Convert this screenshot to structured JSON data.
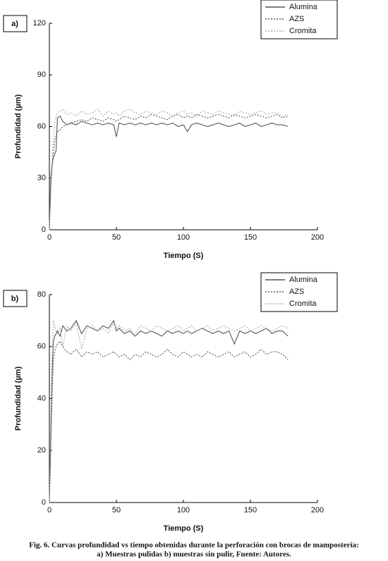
{
  "chart_data": [
    {
      "type": "line",
      "label": "a)",
      "xlabel": "Tiempo (S)",
      "ylabel": "Profundidad (µm)",
      "xlim": [
        0,
        200
      ],
      "xticks": [
        0,
        50,
        100,
        150,
        200
      ],
      "ylim": [
        0,
        120
      ],
      "yticks": [
        0,
        30,
        60,
        90,
        120
      ],
      "legend": "upper right",
      "x": [
        0,
        1,
        2,
        3,
        4,
        5,
        6,
        8,
        10,
        13,
        16,
        20,
        24,
        28,
        32,
        36,
        40,
        44,
        48,
        50,
        52,
        56,
        60,
        64,
        68,
        72,
        76,
        80,
        84,
        88,
        92,
        96,
        100,
        103,
        106,
        110,
        114,
        118,
        122,
        126,
        130,
        134,
        138,
        142,
        146,
        150,
        154,
        158,
        162,
        166,
        170,
        174,
        178
      ],
      "series": [
        {
          "name": "Alumina",
          "color": "#555555",
          "dash": "solid",
          "values": [
            0,
            30,
            38,
            42,
            44,
            46,
            65,
            66,
            63,
            61,
            62,
            61,
            63,
            62,
            61,
            62,
            61,
            62,
            61,
            54,
            62,
            61,
            62,
            61,
            62,
            61,
            62,
            61,
            62,
            61,
            62,
            60,
            61,
            57,
            61,
            62,
            61,
            60,
            61,
            62,
            61,
            60,
            61,
            62,
            60,
            61,
            62,
            60,
            61,
            62,
            61,
            61,
            60
          ]
        },
        {
          "name": "AZS",
          "color": "#555555",
          "dash": "dotted",
          "values": [
            0,
            20,
            35,
            45,
            52,
            55,
            57,
            58,
            60,
            61,
            62,
            63,
            64,
            63,
            65,
            64,
            63,
            65,
            64,
            63,
            64,
            66,
            65,
            64,
            66,
            65,
            67,
            66,
            65,
            64,
            66,
            67,
            65,
            66,
            65,
            67,
            66,
            65,
            66,
            67,
            66,
            65,
            67,
            66,
            65,
            66,
            67,
            66,
            65,
            66,
            67,
            65,
            66
          ]
        },
        {
          "name": "Cromita",
          "color": "#aaaaaa",
          "dash": "dotted",
          "values": [
            0,
            25,
            40,
            55,
            62,
            66,
            68,
            69,
            70,
            67,
            68,
            66,
            69,
            67,
            68,
            70,
            66,
            69,
            67,
            68,
            66,
            69,
            70,
            68,
            67,
            69,
            68,
            67,
            69,
            68,
            66,
            68,
            69,
            67,
            68,
            66,
            69,
            68,
            67,
            69,
            68,
            67,
            66,
            69,
            68,
            67,
            68,
            69,
            67,
            68,
            68,
            66,
            67
          ]
        }
      ]
    },
    {
      "type": "line",
      "label": "b)",
      "xlabel": "Tiempo (S)",
      "ylabel": "Profundidad (µm)",
      "xlim": [
        0,
        200
      ],
      "xticks": [
        0,
        50,
        100,
        150,
        200
      ],
      "ylim": [
        0,
        80
      ],
      "yticks": [
        0,
        20,
        40,
        60,
        80
      ],
      "legend": "upper right",
      "x": [
        0,
        1,
        2,
        3,
        4,
        5,
        6,
        8,
        10,
        13,
        16,
        20,
        24,
        28,
        32,
        36,
        40,
        44,
        48,
        50,
        52,
        56,
        60,
        64,
        68,
        72,
        76,
        80,
        84,
        88,
        92,
        96,
        100,
        103,
        106,
        110,
        114,
        118,
        122,
        126,
        130,
        134,
        138,
        142,
        146,
        150,
        154,
        158,
        162,
        166,
        170,
        174,
        178
      ],
      "series": [
        {
          "name": "Alumina",
          "color": "#555555",
          "dash": "solid",
          "values": [
            0,
            25,
            50,
            62,
            64,
            65,
            66,
            64,
            68,
            66,
            67,
            70,
            65,
            68,
            67,
            66,
            68,
            67,
            70,
            66,
            67,
            65,
            66,
            64,
            66,
            65,
            66,
            65,
            64,
            66,
            65,
            66,
            65,
            66,
            65,
            66,
            67,
            66,
            65,
            66,
            65,
            66,
            61,
            66,
            65,
            66,
            65,
            66,
            67,
            65,
            66,
            66,
            64
          ]
        },
        {
          "name": "AZS",
          "color": "#555555",
          "dash": "dotted",
          "values": [
            0,
            20,
            40,
            55,
            58,
            60,
            61,
            62,
            60,
            58,
            57,
            59,
            56,
            58,
            57,
            58,
            56,
            57,
            58,
            57,
            56,
            57,
            55,
            57,
            56,
            58,
            57,
            56,
            57,
            59,
            57,
            56,
            58,
            57,
            56,
            57,
            56,
            58,
            57,
            56,
            57,
            58,
            56,
            57,
            58,
            56,
            57,
            59,
            57,
            58,
            58,
            57,
            55
          ]
        },
        {
          "name": "Cromita",
          "color": "#aaaaaa",
          "dash": "dotted",
          "values": [
            0,
            30,
            55,
            70,
            68,
            66,
            65,
            67,
            60,
            68,
            66,
            69,
            59,
            67,
            68,
            66,
            67,
            65,
            69,
            67,
            68,
            66,
            67,
            65,
            68,
            67,
            66,
            68,
            67,
            66,
            67,
            68,
            66,
            67,
            68,
            66,
            67,
            68,
            66,
            67,
            68,
            67,
            66,
            67,
            68,
            66,
            67,
            68,
            67,
            66,
            67,
            68,
            67
          ]
        }
      ]
    }
  ],
  "caption": [
    "Fig. 6. Curvas profundidad vs tiempo obtenidas durante la perforación con brocas de mampostería:",
    "a) Muestras pulidas b) muestras sin pulir, Fuente: Autores."
  ]
}
